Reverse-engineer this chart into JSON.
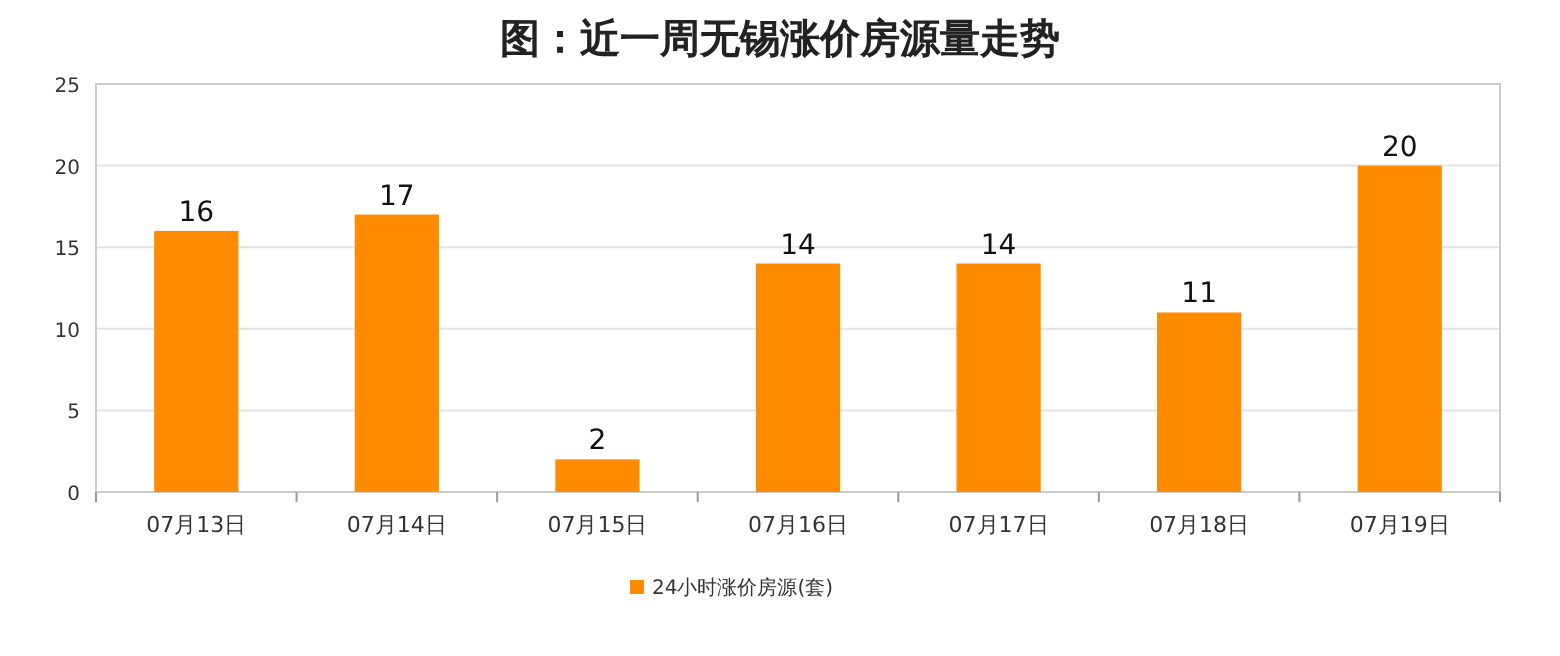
{
  "chart_data": {
    "type": "bar",
    "title": "图：近一周无锡涨价房源量走势",
    "categories": [
      "07月13日",
      "07月14日",
      "07月15日",
      "07月16日",
      "07月17日",
      "07月18日",
      "07月19日"
    ],
    "series": [
      {
        "name": "24小时涨价房源(套)",
        "color": "#ff8c00",
        "values": [
          16,
          17,
          2,
          14,
          14,
          11,
          20
        ]
      }
    ],
    "ylim": [
      0,
      25
    ],
    "yticks": [
      0,
      5,
      10,
      15,
      20,
      25
    ],
    "grid": "y",
    "data_labels": true,
    "legend": "bottom"
  }
}
